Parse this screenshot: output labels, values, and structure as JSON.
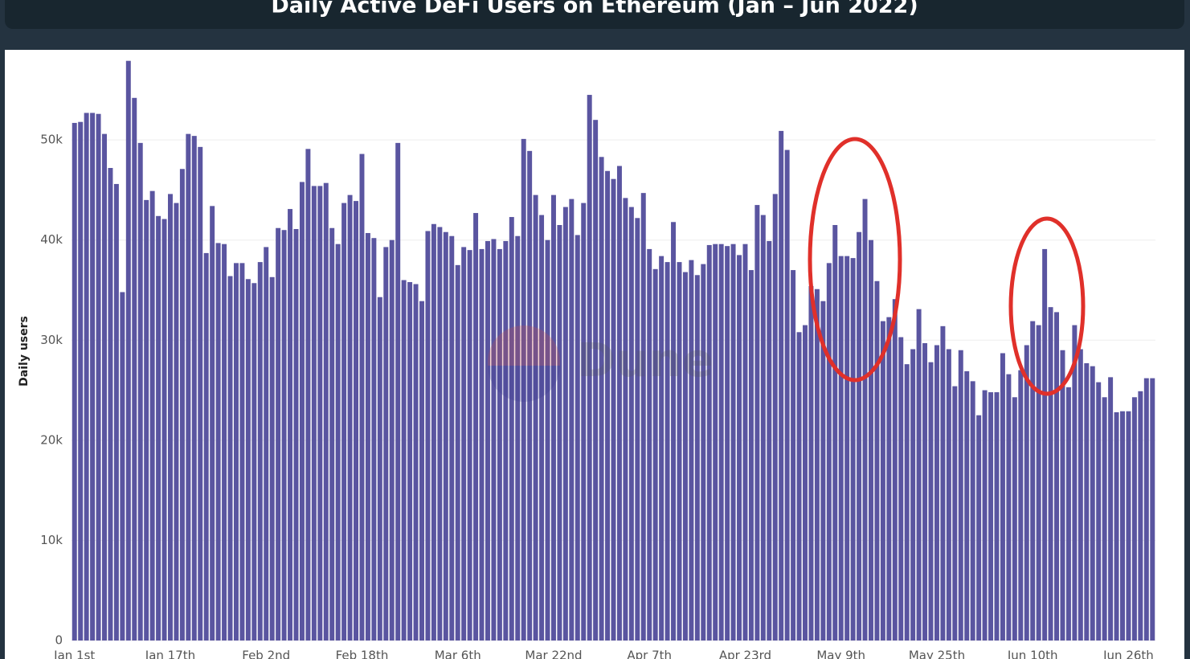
{
  "chart_data": {
    "type": "bar",
    "title": "Daily Active DeFi Users on Ethereum (Jan – Jun 2022)",
    "y_label": "Daily users",
    "watermark": "Dune",
    "color": "#5a55a0",
    "grid": true,
    "ylim": [
      0,
      59000
    ],
    "yticks": [
      0,
      {
        "value": 10000,
        "label": "10k"
      },
      {
        "value": 20000,
        "label": "20k"
      },
      {
        "value": 30000,
        "label": "30k"
      },
      {
        "value": 40000,
        "label": "40k"
      },
      {
        "value": 50000,
        "label": "50k"
      }
    ],
    "categories": [
      "Jan 1st",
      null,
      null,
      null,
      null,
      null,
      null,
      null,
      null,
      null,
      null,
      null,
      null,
      null,
      null,
      null,
      "Jan 17th",
      null,
      null,
      null,
      null,
      null,
      null,
      null,
      null,
      null,
      null,
      null,
      null,
      null,
      null,
      null,
      "Feb 2nd",
      null,
      null,
      null,
      null,
      null,
      null,
      null,
      null,
      null,
      null,
      null,
      null,
      null,
      null,
      null,
      "Feb 18th",
      null,
      null,
      null,
      null,
      null,
      null,
      null,
      null,
      null,
      null,
      null,
      null,
      null,
      null,
      null,
      "Mar 6th",
      null,
      null,
      null,
      null,
      null,
      null,
      null,
      null,
      null,
      null,
      null,
      null,
      null,
      null,
      null,
      "Mar 22nd",
      null,
      null,
      null,
      null,
      null,
      null,
      null,
      null,
      null,
      null,
      null,
      null,
      null,
      null,
      null,
      "Apr 7th",
      null,
      null,
      null,
      null,
      null,
      null,
      null,
      null,
      null,
      null,
      null,
      null,
      null,
      null,
      null,
      "Apr 23rd",
      null,
      null,
      null,
      null,
      null,
      null,
      null,
      null,
      null,
      null,
      null,
      null,
      null,
      null,
      null,
      "May 9th",
      null,
      null,
      null,
      null,
      null,
      null,
      null,
      null,
      null,
      null,
      null,
      null,
      null,
      null,
      null,
      "May 25th",
      null,
      null,
      null,
      null,
      null,
      null,
      null,
      null,
      null,
      null,
      null,
      null,
      null,
      null,
      null,
      "Jun 10th",
      null,
      null,
      null,
      null,
      null,
      null,
      null,
      null,
      null,
      null,
      null,
      null,
      null,
      null,
      null,
      "Jun 26th",
      null,
      null,
      null,
      null
    ],
    "values": [
      51700,
      51800,
      52700,
      52700,
      52600,
      50600,
      47200,
      45600,
      34800,
      57900,
      54200,
      49700,
      44000,
      44900,
      42400,
      42100,
      44600,
      43700,
      47100,
      50600,
      50400,
      49300,
      38700,
      43400,
      39700,
      39600,
      36400,
      37700,
      37700,
      36100,
      35700,
      37800,
      39300,
      36300,
      41200,
      41000,
      43100,
      41100,
      45800,
      49100,
      45400,
      45400,
      45700,
      41200,
      39600,
      43700,
      44500,
      43900,
      48600,
      40700,
      40200,
      34300,
      39300,
      40000,
      49700,
      36000,
      35800,
      35600,
      33900,
      40900,
      41600,
      41300,
      40800,
      40400,
      37500,
      39300,
      39000,
      42700,
      39100,
      39900,
      40100,
      39100,
      39900,
      42300,
      40400,
      50100,
      48900,
      44500,
      42500,
      40000,
      44500,
      41500,
      43300,
      44100,
      40500,
      43700,
      54500,
      52000,
      48300,
      46900,
      46100,
      47400,
      44200,
      43300,
      42200,
      44700,
      39100,
      37100,
      38400,
      37800,
      41800,
      37800,
      36800,
      38000,
      36500,
      37600,
      39500,
      39600,
      39600,
      39400,
      39600,
      38500,
      39600,
      37000,
      43500,
      42500,
      39900,
      44600,
      50900,
      49000,
      37000,
      30800,
      31500,
      35400,
      35100,
      33900,
      37700,
      41500,
      38400,
      38400,
      38200,
      40800,
      44100,
      40000,
      35900,
      31900,
      32300,
      34100,
      30300,
      27600,
      29100,
      33100,
      29700,
      27800,
      29500,
      31400,
      29100,
      25400,
      29000,
      26900,
      25900,
      22500,
      25000,
      24800,
      24800,
      28700,
      26600,
      24300,
      27000,
      29500,
      31900,
      31500,
      39100,
      33300,
      32800,
      29000,
      25300,
      31500,
      29100,
      27700,
      27400,
      25800,
      24300,
      26300,
      22800,
      22900,
      22900,
      24300,
      24900,
      26200,
      26200
    ]
  }
}
